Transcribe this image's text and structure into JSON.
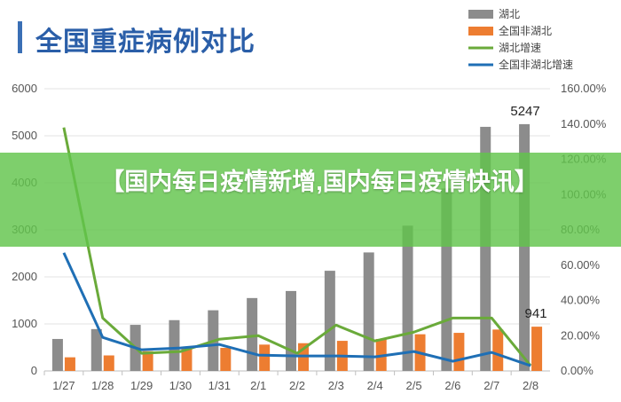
{
  "title": "全国重症病例对比",
  "banner": "【国内每日疫情新增,国内每日疫情快讯】",
  "colors": {
    "title": "#2a5ea8",
    "hubei_bar": "#8c8c8c",
    "national_bar": "#ed7d31",
    "hubei_growth": "#6aaa3a",
    "national_growth": "#1f6fb5",
    "banner": "#62c44c"
  },
  "chart_data": {
    "type": "bar",
    "categories": [
      "1/27",
      "1/28",
      "1/29",
      "1/30",
      "1/31",
      "2/1",
      "2/2",
      "2/3",
      "2/4",
      "2/5",
      "2/6",
      "2/7",
      "2/8"
    ],
    "series": [
      {
        "name": "湖北",
        "type": "bar",
        "axis": "left",
        "values": [
          680,
          890,
          980,
          1080,
          1290,
          1550,
          1700,
          2130,
          2520,
          3090,
          3880,
          5190,
          5247
        ]
      },
      {
        "name": "全国非湖北",
        "type": "bar",
        "axis": "left",
        "values": [
          290,
          330,
          420,
          470,
          490,
          560,
          590,
          640,
          680,
          780,
          810,
          880,
          941
        ]
      },
      {
        "name": "湖北增速",
        "type": "line",
        "axis": "right",
        "values": [
          138,
          30,
          10,
          11,
          18,
          20,
          10,
          26,
          17,
          22,
          30,
          30,
          3
        ]
      },
      {
        "name": "全国非湖北增速",
        "type": "line",
        "axis": "right",
        "values": [
          67,
          19,
          12,
          13,
          15,
          9,
          8.5,
          8.5,
          8,
          11,
          5.5,
          10.5,
          3
        ]
      }
    ],
    "y_left": {
      "min": 0,
      "max": 6000,
      "ticks": [
        "0",
        "1000",
        "2000",
        "3000",
        "4000",
        "5000",
        "6000"
      ]
    },
    "y_right": {
      "min": 0,
      "max": 160,
      "ticks": [
        "0.00%",
        "20.00%",
        "40.00%",
        "60.00%",
        "80.00%",
        "100.00%",
        "120.00%",
        "140.00%",
        "160.00%"
      ]
    },
    "data_labels": [
      {
        "series": 0,
        "index": 12,
        "text": "5247"
      },
      {
        "series": 1,
        "index": 12,
        "text": "941"
      }
    ],
    "legend": [
      "湖北",
      "全国非湖北",
      "湖北增速",
      "全国非湖北增速"
    ],
    "legend_position": "top-right",
    "grid": true
  }
}
